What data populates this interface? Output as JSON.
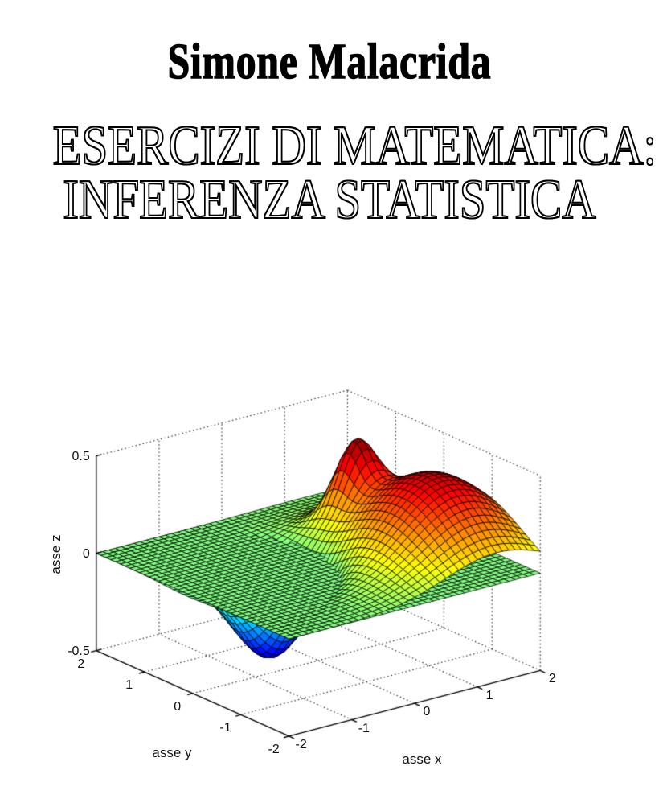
{
  "cover": {
    "author": "Simone Malacrida",
    "title_line1": "ESERCIZI DI MATEMATICA:",
    "title_line2": "INFERENZA STATISTICA"
  },
  "chart_data": {
    "type": "surface",
    "title": "",
    "xlabel": "asse x",
    "ylabel": "asse y",
    "zlabel": "asse z",
    "xlim": [
      -2,
      2
    ],
    "ylim": [
      -2,
      2
    ],
    "zlim": [
      -0.5,
      0.5
    ],
    "x_ticks": [
      -2,
      -1,
      0,
      1,
      2
    ],
    "y_ticks": [
      2,
      1,
      0,
      -1,
      -2
    ],
    "z_ticks": [
      0.5,
      0,
      -0.5
    ],
    "grid": "dotted",
    "box": "back-walls-and-floor",
    "colormap": "jet",
    "mesh_points": 41,
    "view": {
      "azimuth": -37.5,
      "elevation": 30
    },
    "surfaces": [
      {
        "name": "flat-plane",
        "kind": "plane",
        "z": 0
      },
      {
        "name": "gaussian-bumps",
        "kind": "gaussian-sum",
        "components": [
          {
            "amp": -0.45,
            "cx": -0.68,
            "cy": 0.1,
            "sx": 0.5,
            "sy": 0.5
          },
          {
            "amp": 0.42,
            "cx": 1.3,
            "cy": -0.7,
            "sx": 1.3,
            "sy": 1.8
          },
          {
            "amp": 0.33,
            "cx": 1.05,
            "cy": 0.6,
            "sx": 0.14,
            "sy": 0.14
          }
        ]
      }
    ],
    "colors": {
      "mesh_edge": "#000000",
      "grid_line": "#1a1a1a",
      "axis_line": "#000000",
      "background": "#ffffff"
    }
  }
}
